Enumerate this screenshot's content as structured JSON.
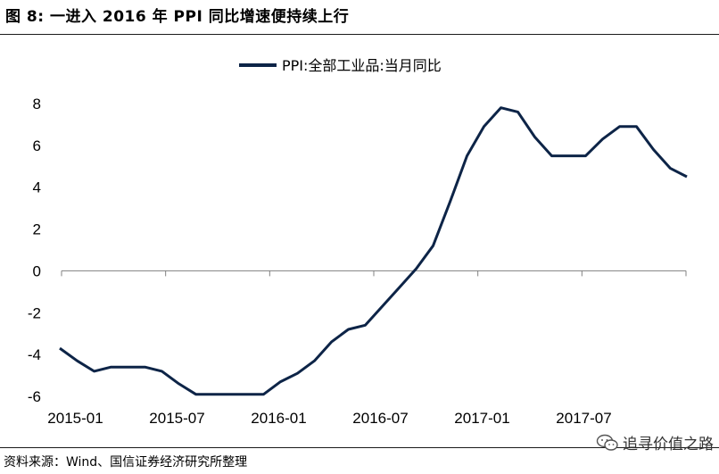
{
  "figure_title": "图 8: 一进入 2016 年 PPI 同比增速便持续上行",
  "source_note": "资料来源：Wind、国信证券经济研究所整理",
  "watermark": "追寻价值之路",
  "colors": {
    "series": "#0d2447",
    "axis": "#808080",
    "rule": "#1a1a1a"
  },
  "chart_data": {
    "type": "line",
    "title": "",
    "xlabel": "",
    "ylabel": "",
    "ylim": [
      -6,
      8
    ],
    "yticks": [
      8,
      6,
      4,
      2,
      0,
      -2,
      -4,
      -6
    ],
    "ytick_labels": [
      "8",
      "6",
      "4",
      "2",
      "0",
      "-2",
      "-4",
      "-6"
    ],
    "xtick_labels": [
      "2015-01",
      "2015-07",
      "2016-01",
      "2016-07",
      "2017-01",
      "2017-07"
    ],
    "xtick_indices": [
      0,
      6,
      12,
      18,
      24,
      30
    ],
    "legend_position": "top-center",
    "grid": false,
    "x": [
      "2015-01",
      "2015-02",
      "2015-03",
      "2015-04",
      "2015-05",
      "2015-06",
      "2015-07",
      "2015-08",
      "2015-09",
      "2015-10",
      "2015-11",
      "2015-12",
      "2016-01",
      "2016-02",
      "2016-03",
      "2016-04",
      "2016-05",
      "2016-06",
      "2016-07",
      "2016-08",
      "2016-09",
      "2016-10",
      "2016-11",
      "2016-12",
      "2017-01",
      "2017-02",
      "2017-03",
      "2017-04",
      "2017-05",
      "2017-06",
      "2017-07",
      "2017-08",
      "2017-09",
      "2017-10",
      "2017-11",
      "2017-12"
    ],
    "series": [
      {
        "name": "PPI:全部工业品:当月同比",
        "values": [
          -4.3,
          -4.8,
          -4.6,
          -4.6,
          -4.6,
          -4.8,
          -5.4,
          -5.9,
          -5.9,
          -5.9,
          -5.9,
          -5.9,
          -5.3,
          -4.9,
          -4.3,
          -3.4,
          -2.8,
          -2.6,
          -1.7,
          -0.8,
          0.1,
          1.2,
          3.3,
          5.5,
          6.9,
          7.8,
          7.6,
          6.4,
          5.5,
          5.5,
          5.5,
          6.3,
          6.9,
          6.9,
          5.8,
          4.9
        ]
      }
    ],
    "leading_point": -3.7,
    "trailing_point": 4.5
  }
}
